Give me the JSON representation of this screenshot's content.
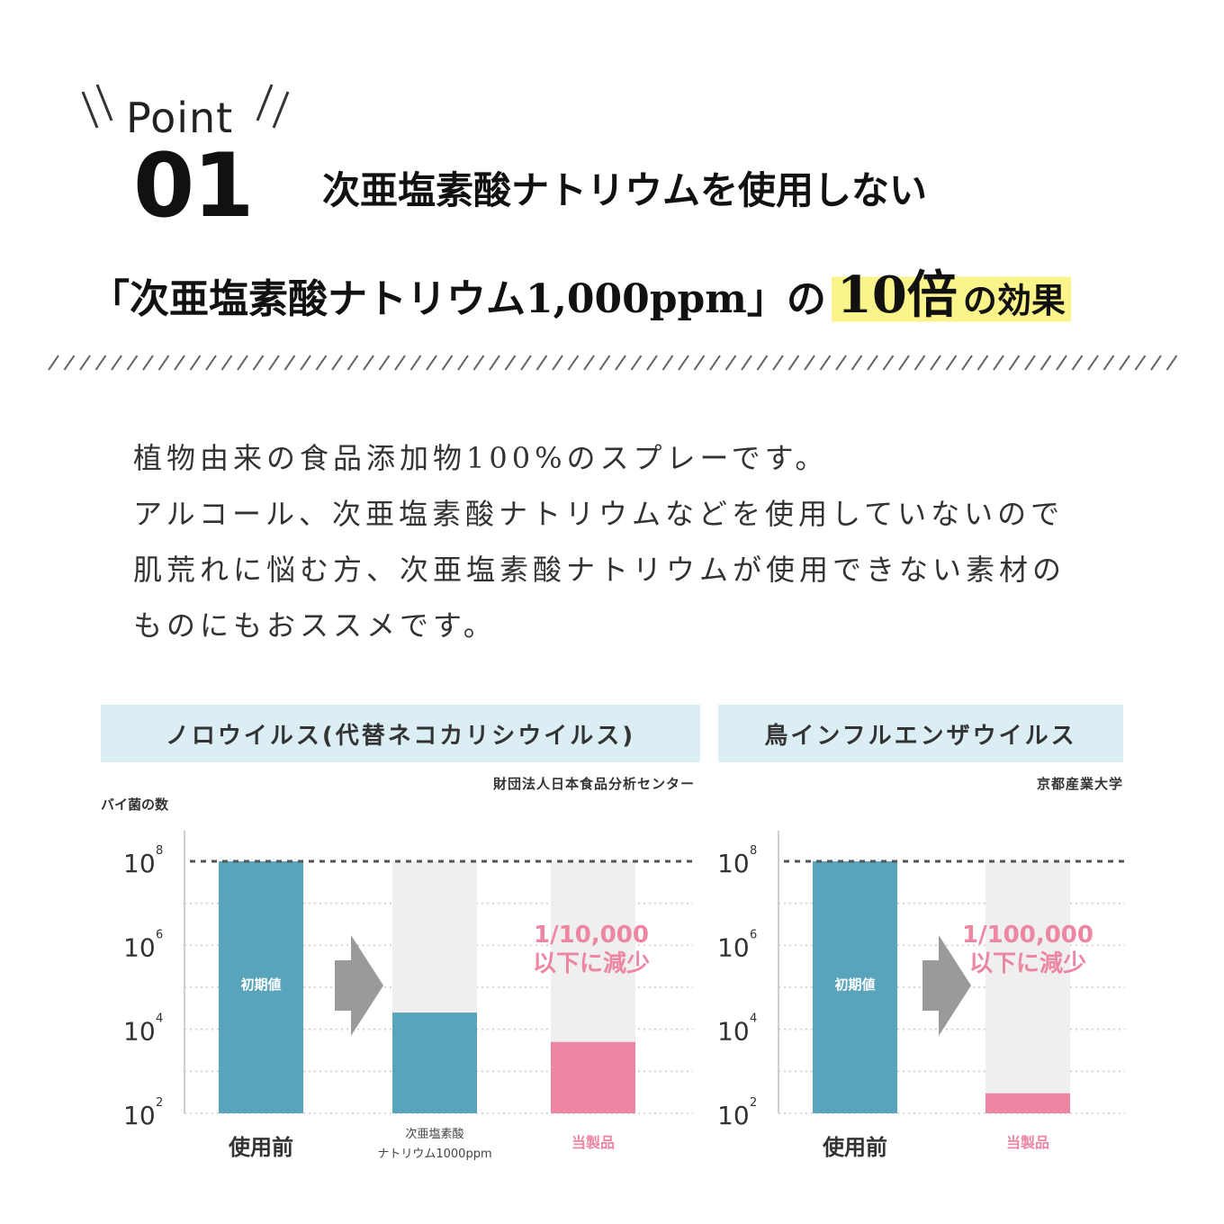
{
  "point": {
    "word": "Point",
    "number": "01"
  },
  "headline1": "次亜塩素酸ナトリウムを使用しない",
  "headline2": {
    "prefix": "「次亜塩素酸ナトリウム1,000ppm」の",
    "big": "10倍",
    "suffix": "の効果"
  },
  "description": [
    "植物由来の食品添加物100%のスプレーです。",
    "アルコール、次亜塩素酸ナトリウムなどを使用していないので",
    "肌荒れに悩む方、次亜塩素酸ナトリウムが使用できない素材の",
    "ものにもおススメです。"
  ],
  "colors": {
    "teal": "#58a4ba",
    "pink": "#ec86a3",
    "ghost": "#efefef",
    "arrow": "#9a9a9a",
    "header_bg": "#dbeef4",
    "highlight": "#fbf48a"
  },
  "chart_data": [
    {
      "type": "bar",
      "title": "ノロウイルス(代替ネコカリシウイルス)",
      "source": "財団法人日本食品分析センター",
      "ylabel": "バイ菌の数",
      "yscale": "log",
      "ylim": [
        100,
        100000000
      ],
      "ytick_labels": [
        {
          "base": "10",
          "exp": "8"
        },
        {
          "base": "10",
          "exp": "6"
        },
        {
          "base": "10",
          "exp": "4"
        },
        {
          "base": "10",
          "exp": "2"
        }
      ],
      "bars": [
        {
          "label": "使用前",
          "value": 100000000,
          "color": "teal",
          "inner_label": "初期値",
          "label_style": "normal"
        },
        {
          "label": "次亜塩素酸\nナトリウム1000ppm",
          "value": 25000,
          "color": "teal",
          "label_style": "small"
        },
        {
          "label": "当製品",
          "value": 5000,
          "color": "pink",
          "label_style": "pink"
        }
      ],
      "annotation": [
        "1/10,000",
        "以下に減少"
      ],
      "reference_line": 100000000,
      "grid": true
    },
    {
      "type": "bar",
      "title": "鳥インフルエンザウイルス",
      "source": "京都産業大学",
      "yscale": "log",
      "ylim": [
        100,
        100000000
      ],
      "ytick_labels": [
        {
          "base": "10",
          "exp": "8"
        },
        {
          "base": "10",
          "exp": "6"
        },
        {
          "base": "10",
          "exp": "4"
        },
        {
          "base": "10",
          "exp": "2"
        }
      ],
      "bars": [
        {
          "label": "使用前",
          "value": 100000000,
          "color": "teal",
          "inner_label": "初期値",
          "label_style": "normal"
        },
        {
          "label": "当製品",
          "value": 300,
          "color": "pink",
          "label_style": "pink"
        }
      ],
      "annotation": [
        "1/100,000",
        "以下に減少"
      ],
      "reference_line": 100000000,
      "grid": true
    }
  ]
}
